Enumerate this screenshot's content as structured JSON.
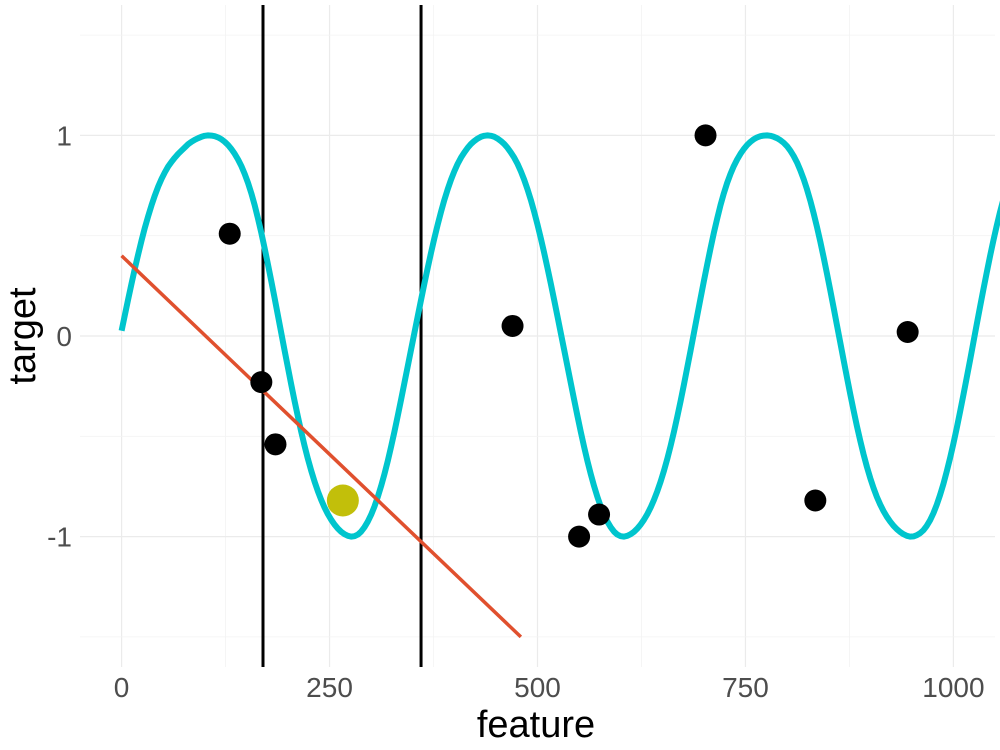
{
  "chart_data": {
    "type": "line",
    "title": "",
    "xlabel": "feature",
    "ylabel": "target",
    "xlim": [
      -50,
      1050
    ],
    "ylim": [
      -1.65,
      1.65
    ],
    "x_ticks": [
      0,
      250,
      500,
      750,
      1000
    ],
    "x_tick_labels": [
      "0",
      "250",
      "500",
      "750",
      "1000"
    ],
    "y_ticks": [
      -1,
      0,
      1
    ],
    "y_tick_labels": [
      "-1",
      "0",
      "1"
    ],
    "grid": true,
    "legend": "none",
    "curve": {
      "x_start": 0,
      "x_end": 1000,
      "step": 4,
      "color": "#00C5CD",
      "y": [
        0.026,
        0.106,
        0.185,
        0.262,
        0.337,
        0.408,
        0.476,
        0.54,
        0.598,
        0.652,
        0.701,
        0.745,
        0.783,
        0.816,
        0.845,
        0.868,
        0.889,
        0.908,
        0.924,
        0.94,
        0.956,
        0.968,
        0.978,
        0.986,
        0.993,
        0.998,
        1.0,
        0.999,
        0.996,
        0.99,
        0.981,
        0.968,
        0.952,
        0.932,
        0.908,
        0.88,
        0.847,
        0.808,
        0.763,
        0.711,
        0.652,
        0.585,
        0.514,
        0.437,
        0.356,
        0.273,
        0.188,
        0.101,
        0.014,
        -0.073,
        -0.158,
        -0.243,
        -0.325,
        -0.403,
        -0.478,
        -0.548,
        -0.613,
        -0.672,
        -0.726,
        -0.774,
        -0.817,
        -0.855,
        -0.888,
        -0.916,
        -0.94,
        -0.96,
        -0.976,
        -0.988,
        -0.996,
        -1.0,
        -0.998,
        -0.99,
        -0.975,
        -0.953,
        -0.925,
        -0.891,
        -0.85,
        -0.802,
        -0.748,
        -0.688,
        -0.623,
        -0.552,
        -0.477,
        -0.398,
        -0.317,
        -0.234,
        -0.151,
        -0.068,
        0.015,
        0.098,
        0.18,
        0.261,
        0.339,
        0.415,
        0.487,
        0.555,
        0.619,
        0.678,
        0.731,
        0.779,
        0.821,
        0.858,
        0.889,
        0.915,
        0.938,
        0.957,
        0.972,
        0.984,
        0.993,
        0.998,
        1.0,
        0.998,
        0.993,
        0.984,
        0.972,
        0.957,
        0.938,
        0.915,
        0.889,
        0.858,
        0.821,
        0.779,
        0.731,
        0.678,
        0.619,
        0.555,
        0.487,
        0.415,
        0.339,
        0.261,
        0.18,
        0.098,
        0.015,
        -0.068,
        -0.151,
        -0.234,
        -0.317,
        -0.398,
        -0.477,
        -0.552,
        -0.623,
        -0.688,
        -0.748,
        -0.802,
        -0.85,
        -0.891,
        -0.925,
        -0.953,
        -0.975,
        -0.99,
        -0.998,
        -1.0,
        -0.996,
        -0.988,
        -0.976,
        -0.96,
        -0.94,
        -0.916,
        -0.888,
        -0.855,
        -0.817,
        -0.774,
        -0.726,
        -0.672,
        -0.613,
        -0.548,
        -0.478,
        -0.403,
        -0.325,
        -0.243,
        -0.158,
        -0.073,
        0.014,
        0.101,
        0.188,
        0.273,
        0.356,
        0.437,
        0.514,
        0.585,
        0.652,
        0.711,
        0.763,
        0.808,
        0.847,
        0.88,
        0.908,
        0.932,
        0.952,
        0.968,
        0.981,
        0.99,
        0.996,
        0.999,
        1.0,
        0.998,
        0.993,
        0.986,
        0.976,
        0.963,
        0.946,
        0.924,
        0.897,
        0.865,
        0.826,
        0.782,
        0.731,
        0.674,
        0.611,
        0.543,
        0.47,
        0.392,
        0.311,
        0.227,
        0.141,
        0.054,
        -0.033,
        -0.12,
        -0.206,
        -0.29,
        -0.371,
        -0.449,
        -0.522,
        -0.59,
        -0.652,
        -0.708,
        -0.758,
        -0.802,
        -0.84,
        -0.873,
        -0.901,
        -0.925,
        -0.946,
        -0.963,
        -0.977,
        -0.988,
        -0.996,
        -1.0,
        -0.999,
        -0.993,
        -0.983,
        -0.968,
        -0.946,
        -0.918,
        -0.883,
        -0.841,
        -0.792,
        -0.737,
        -0.675,
        -0.608,
        -0.536,
        -0.459,
        -0.378,
        -0.294,
        -0.208,
        -0.121,
        -0.032,
        0.057,
        0.145,
        0.231,
        0.315,
        0.397,
        0.475,
        0.548,
        0.617,
        0.68,
        0.736,
        0.786,
        0.831,
        0.869,
        0.9
      ]
    },
    "regression_line": {
      "color": "#E0502E",
      "x": [
        0,
        480
      ],
      "y": [
        0.4,
        -1.5
      ]
    },
    "vertical_lines": {
      "color": "#000000",
      "x": [
        170,
        360
      ]
    },
    "points": {
      "color": "#000000",
      "x": [
        130,
        168,
        185,
        470,
        550,
        574,
        702,
        834,
        945
      ],
      "y": [
        0.51,
        -0.23,
        -0.54,
        0.05,
        -1.0,
        -0.89,
        1.0,
        -0.82,
        0.02
      ]
    },
    "highlight_point": {
      "color": "#C2BF0A",
      "x": 266,
      "y": -0.82
    }
  }
}
